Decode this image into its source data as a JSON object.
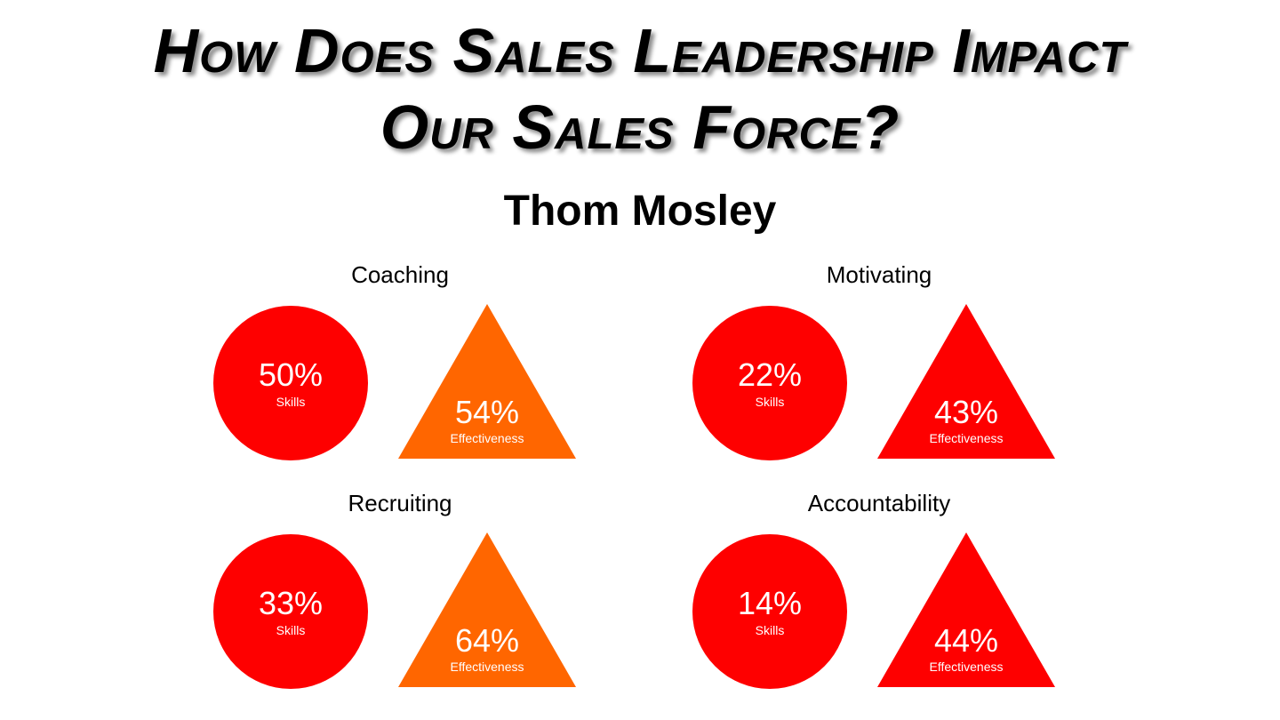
{
  "title": {
    "line1": "How Does Sales Leadership Impact",
    "line2": "Our Sales Force?"
  },
  "subtitle": "Thom Mosley",
  "panels": [
    {
      "label": "Coaching",
      "skills": {
        "value": "50%",
        "caption": "Skills",
        "color": "#fe0000"
      },
      "effectiveness": {
        "value": "54%",
        "caption": "Effectiveness",
        "color": "#ff6600"
      }
    },
    {
      "label": "Motivating",
      "skills": {
        "value": "22%",
        "caption": "Skills",
        "color": "#fe0000"
      },
      "effectiveness": {
        "value": "43%",
        "caption": "Effectiveness",
        "color": "#fe0000"
      }
    },
    {
      "label": "Recruiting",
      "skills": {
        "value": "33%",
        "caption": "Skills",
        "color": "#fe0000"
      },
      "effectiveness": {
        "value": "64%",
        "caption": "Effectiveness",
        "color": "#ff6600"
      }
    },
    {
      "label": "Accountability",
      "skills": {
        "value": "14%",
        "caption": "Skills",
        "color": "#fe0000"
      },
      "effectiveness": {
        "value": "44%",
        "caption": "Effectiveness",
        "color": "#fe0000"
      }
    }
  ]
}
